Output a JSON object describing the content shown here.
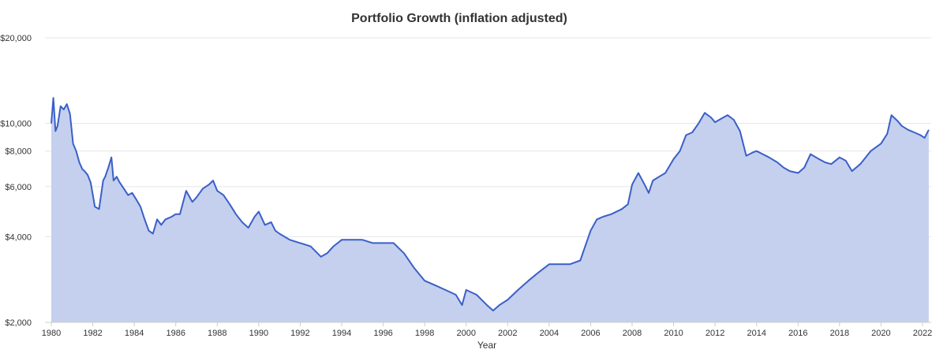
{
  "chart_data": {
    "type": "area",
    "title": "Portfolio Growth (inflation adjusted)",
    "xlabel": "Year",
    "ylabel": "",
    "y_scale": "log",
    "ylim": [
      2000,
      20000
    ],
    "xlim": [
      1980,
      2022.3
    ],
    "y_ticks": [
      2000,
      4000,
      6000,
      8000,
      10000,
      20000
    ],
    "y_tick_labels": [
      "$2,000",
      "$4,000",
      "$6,000",
      "$8,000",
      "$10,000",
      "$20,000"
    ],
    "x_ticks": [
      1980,
      1982,
      1984,
      1986,
      1988,
      1990,
      1992,
      1994,
      1996,
      1998,
      2000,
      2002,
      2004,
      2006,
      2008,
      2010,
      2012,
      2014,
      2016,
      2018,
      2020,
      2022
    ],
    "x_tick_labels": [
      "1980",
      "1982",
      "1984",
      "1986",
      "1988",
      "1990",
      "1992",
      "1994",
      "1996",
      "1998",
      "2000",
      "2002",
      "2004",
      "2006",
      "2008",
      "2010",
      "2012",
      "2014",
      "2016",
      "2018",
      "2020",
      "2022"
    ],
    "grid": true,
    "legend": "none",
    "line_color": "#3a5fc8",
    "fill_color": "#c5d0ee",
    "series": [
      {
        "x": [
          1980.0,
          1980.1,
          1980.2,
          1980.3,
          1980.45,
          1980.6,
          1980.75,
          1980.9,
          1981.05,
          1981.2,
          1981.35,
          1981.5,
          1981.6,
          1981.75,
          1981.9,
          1982.1,
          1982.3,
          1982.5,
          1982.6,
          1982.75,
          1982.9,
          1983.0,
          1983.15,
          1983.3,
          1983.5,
          1983.7,
          1983.9,
          1984.1,
          1984.3,
          1984.5,
          1984.7,
          1984.9,
          1985.1,
          1985.3,
          1985.5,
          1985.8,
          1986.0,
          1986.2,
          1986.5,
          1986.8,
          1987.0,
          1987.3,
          1987.6,
          1987.8,
          1988.0,
          1988.3,
          1988.6,
          1988.9,
          1989.2,
          1989.5,
          1989.8,
          1990.0,
          1990.3,
          1990.6,
          1990.8,
          1991.0,
          1991.5,
          1992.0,
          1992.5,
          1993.0,
          1993.3,
          1993.6,
          1994.0,
          1994.5,
          1995.0,
          1995.5,
          1996.0,
          1996.5,
          1997.0,
          1997.5,
          1998.0,
          1998.5,
          1999.0,
          1999.5,
          1999.8,
          2000.0,
          2000.5,
          2001.0,
          2001.3,
          2001.6,
          2002.0,
          2002.5,
          2003.0,
          2003.5,
          2004.0,
          2004.5,
          2005.0,
          2005.5,
          2006.0,
          2006.3,
          2006.6,
          2007.0,
          2007.5,
          2007.8,
          2008.0,
          2008.3,
          2008.6,
          2008.8,
          2009.0,
          2009.3,
          2009.6,
          2010.0,
          2010.3,
          2010.6,
          2010.9,
          2011.2,
          2011.5,
          2011.8,
          2012.0,
          2012.3,
          2012.6,
          2012.9,
          2013.2,
          2013.5,
          2013.8,
          2014.0,
          2014.3,
          2014.6,
          2015.0,
          2015.3,
          2015.6,
          2016.0,
          2016.3,
          2016.6,
          2017.0,
          2017.3,
          2017.6,
          2018.0,
          2018.3,
          2018.6,
          2019.0,
          2019.5,
          2019.8,
          2020.0,
          2020.3,
          2020.5,
          2020.8,
          2021.0,
          2021.3,
          2021.6,
          2021.9,
          2022.1,
          2022.3
        ],
        "values": [
          10000,
          12300,
          9400,
          9800,
          11500,
          11200,
          11700,
          10800,
          8500,
          8000,
          7300,
          6900,
          6800,
          6600,
          6200,
          5100,
          5000,
          6300,
          6500,
          7000,
          7600,
          6300,
          6500,
          6200,
          5900,
          5600,
          5700,
          5400,
          5100,
          4600,
          4200,
          4100,
          4600,
          4400,
          4600,
          4700,
          4800,
          4800,
          5800,
          5300,
          5500,
          5900,
          6100,
          6300,
          5800,
          5600,
          5200,
          4800,
          4500,
          4300,
          4700,
          4900,
          4400,
          4500,
          4200,
          4100,
          3900,
          3800,
          3700,
          3400,
          3500,
          3700,
          3900,
          3900,
          3900,
          3800,
          3800,
          3800,
          3500,
          3100,
          2800,
          2700,
          2600,
          2500,
          2300,
          2600,
          2500,
          2300,
          2200,
          2300,
          2400,
          2600,
          2800,
          3000,
          3200,
          3200,
          3200,
          3300,
          4200,
          4600,
          4700,
          4800,
          5000,
          5200,
          6100,
          6700,
          6100,
          5700,
          6300,
          6500,
          6700,
          7500,
          8000,
          9100,
          9300,
          10000,
          10900,
          10500,
          10100,
          10400,
          10700,
          10300,
          9400,
          7700,
          7900,
          8000,
          7800,
          7600,
          7300,
          7000,
          6800,
          6700,
          7000,
          7800,
          7500,
          7300,
          7200,
          7600,
          7400,
          6800,
          7200,
          8000,
          8300,
          8500,
          9200,
          10700,
          10200,
          9800,
          9500,
          9300,
          9100,
          8900,
          9500
        ]
      }
    ]
  }
}
